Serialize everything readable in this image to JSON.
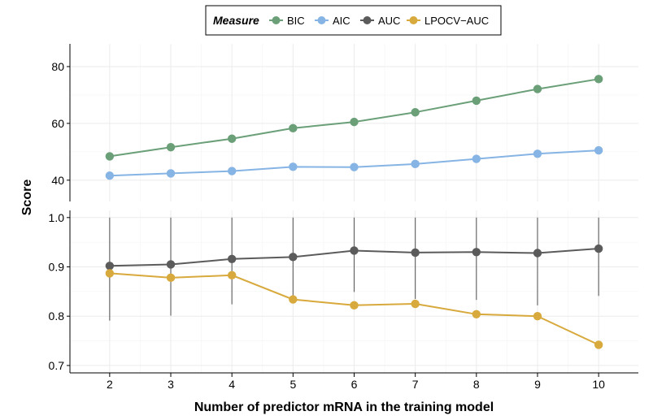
{
  "chart_data": {
    "type": "line",
    "xlabel": "Number of predictor mRNA in the training model",
    "ylabel": "Score",
    "x": [
      2,
      3,
      4,
      5,
      6,
      7,
      8,
      9,
      10
    ],
    "xlim": [
      1.35,
      10.65
    ],
    "legend": {
      "title": "Measure",
      "placement": "top"
    },
    "grid": true,
    "panels": [
      {
        "ylim": [
          32.5,
          88
        ],
        "yticks": [
          "40",
          "60",
          "80"
        ],
        "tick_values": [
          40,
          60,
          80
        ]
      },
      {
        "ylim": [
          0.685,
          1.0145
        ],
        "yticks": [
          "0.7",
          "0.8",
          "0.9",
          "1.0"
        ],
        "tick_values": [
          0.7,
          0.8,
          0.9,
          1.0
        ]
      }
    ],
    "series": [
      {
        "name": "BIC",
        "panel": 0,
        "color": "#6a9f78",
        "values": [
          48.4,
          51.6,
          54.6,
          58.3,
          60.5,
          63.9,
          68.0,
          72.1,
          75.6
        ]
      },
      {
        "name": "AIC",
        "panel": 0,
        "color": "#86b4e4",
        "values": [
          41.6,
          42.4,
          43.2,
          44.7,
          44.6,
          45.7,
          47.5,
          49.3,
          50.5
        ]
      },
      {
        "name": "AUC",
        "panel": 1,
        "color": "#5b5b5b",
        "values": [
          0.902,
          0.905,
          0.916,
          0.92,
          0.933,
          0.929,
          0.93,
          0.928,
          0.937
        ],
        "error_low": [
          0.791,
          0.801,
          0.824,
          0.838,
          0.849,
          0.835,
          0.833,
          0.822,
          0.841
        ],
        "error_high": [
          1.0,
          1.0,
          1.0,
          1.0,
          1.0,
          1.0,
          1.0,
          1.0,
          1.0
        ]
      },
      {
        "name": "LPOCV−AUC",
        "panel": 1,
        "color": "#d8a93c",
        "values": [
          0.887,
          0.878,
          0.883,
          0.834,
          0.822,
          0.825,
          0.804,
          0.8,
          0.742
        ]
      }
    ]
  }
}
